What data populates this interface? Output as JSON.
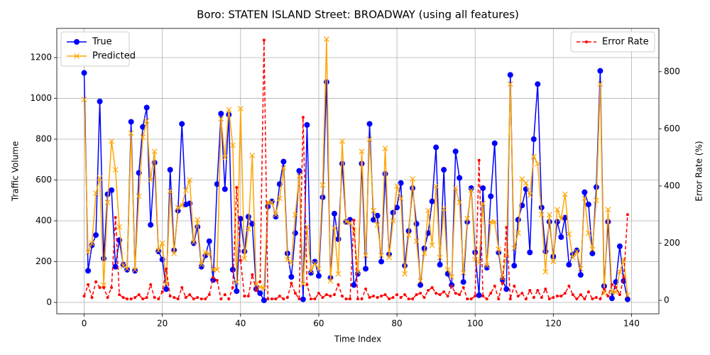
{
  "chart_data": {
    "type": "line",
    "title": "Boro: STATEN ISLAND Street: BROADWAY (using all features)",
    "x_label": "Time Index",
    "y_label": "Traffic Volume",
    "y2_label": "Error Rate (%)",
    "x": [
      0,
      1,
      2,
      3,
      4,
      5,
      6,
      7,
      8,
      9,
      10,
      11,
      12,
      13,
      14,
      15,
      16,
      17,
      18,
      19,
      20,
      21,
      22,
      23,
      24,
      25,
      26,
      27,
      28,
      29,
      30,
      31,
      32,
      33,
      34,
      35,
      36,
      37,
      38,
      39,
      40,
      41,
      42,
      43,
      44,
      45,
      46,
      47,
      48,
      49,
      50,
      51,
      52,
      53,
      54,
      55,
      56,
      57,
      58,
      59,
      60,
      61,
      62,
      63,
      64,
      65,
      66,
      67,
      68,
      69,
      70,
      71,
      72,
      73,
      74,
      75,
      76,
      77,
      78,
      79,
      80,
      81,
      82,
      83,
      84,
      85,
      86,
      87,
      88,
      89,
      90,
      91,
      92,
      93,
      94,
      95,
      96,
      97,
      98,
      99,
      100,
      101,
      102,
      103,
      104,
      105,
      106,
      107,
      108,
      109,
      110,
      111,
      112,
      113,
      114,
      115,
      116,
      117,
      118,
      119,
      120,
      121,
      122,
      123,
      124,
      125,
      126,
      127,
      128,
      129,
      130,
      131,
      132,
      133,
      134,
      135,
      136,
      137,
      138,
      139
    ],
    "series": [
      {
        "name": "True",
        "color": "#0000ff",
        "marker": "o",
        "axis": "y",
        "values": [
          1125,
          155,
          280,
          330,
          985,
          215,
          530,
          550,
          175,
          305,
          185,
          160,
          885,
          155,
          635,
          860,
          955,
          380,
          685,
          250,
          210,
          65,
          650,
          255,
          450,
          875,
          480,
          485,
          290,
          370,
          175,
          230,
          300,
          110,
          580,
          925,
          555,
          920,
          160,
          55,
          410,
          250,
          420,
          385,
          65,
          45,
          10,
          470,
          495,
          420,
          580,
          690,
          240,
          125,
          340,
          645,
          15,
          870,
          145,
          200,
          130,
          515,
          1080,
          120,
          435,
          310,
          680,
          395,
          405,
          85,
          140,
          680,
          165,
          875,
          405,
          425,
          200,
          630,
          235,
          440,
          465,
          585,
          180,
          350,
          560,
          385,
          85,
          265,
          340,
          495,
          760,
          185,
          650,
          140,
          85,
          740,
          610,
          100,
          395,
          560,
          245,
          35,
          560,
          170,
          520,
          780,
          245,
          110,
          65,
          1115,
          180,
          405,
          475,
          555,
          245,
          800,
          1070,
          465,
          250,
          395,
          225,
          395,
          320,
          415,
          185,
          235,
          255,
          135,
          540,
          480,
          240,
          565,
          1135,
          80,
          395,
          20,
          100,
          275,
          105,
          15
        ]
      },
      {
        "name": "Predicted",
        "color": "#ffa500",
        "marker": "x",
        "axis": "y",
        "values": [
          995,
          245,
          290,
          535,
          610,
          85,
          490,
          790,
          650,
          370,
          180,
          165,
          830,
          160,
          520,
          810,
          890,
          600,
          740,
          255,
          290,
          90,
          545,
          240,
          465,
          475,
          550,
          600,
          295,
          405,
          185,
          245,
          240,
          160,
          160,
          900,
          710,
          945,
          770,
          100,
          950,
          215,
          360,
          720,
          90,
          75,
          70,
          490,
          490,
          430,
          510,
          660,
          210,
          195,
          430,
          620,
          90,
          370,
          155,
          190,
          165,
          575,
          1290,
          105,
          365,
          140,
          790,
          395,
          390,
          355,
          150,
          740,
          230,
          800,
          450,
          380,
          230,
          755,
          220,
          400,
          570,
          510,
          140,
          330,
          605,
          300,
          105,
          240,
          450,
          280,
          570,
          220,
          460,
          160,
          125,
          560,
          490,
          145,
          410,
          550,
          210,
          195,
          485,
          180,
          395,
          395,
          260,
          120,
          230,
          1070,
          265,
          340,
          605,
          585,
          525,
          715,
          680,
          430,
          150,
          430,
          200,
          455,
          410,
          530,
          335,
          220,
          250,
          165,
          510,
          340,
          260,
          500,
          1070,
          45,
          455,
          50,
          50,
          150,
          210,
          35
        ]
      },
      {
        "name": "Error Rate",
        "color": "#ff0000",
        "marker": ".",
        "dash": true,
        "axis": "y2",
        "values": [
          15,
          55,
          10,
          65,
          45,
          45,
          10,
          45,
          290,
          20,
          10,
          5,
          5,
          10,
          20,
          5,
          10,
          55,
          10,
          5,
          30,
          110,
          15,
          10,
          5,
          45,
          10,
          20,
          5,
          10,
          5,
          5,
          20,
          80,
          70,
          5,
          20,
          5,
          45,
          395,
          140,
          15,
          15,
          90,
          35,
          65,
          910,
          5,
          5,
          5,
          15,
          5,
          10,
          60,
          25,
          5,
          640,
          55,
          5,
          5,
          25,
          10,
          20,
          15,
          20,
          55,
          15,
          5,
          5,
          280,
          5,
          5,
          40,
          10,
          15,
          10,
          15,
          20,
          5,
          10,
          20,
          10,
          20,
          5,
          5,
          20,
          25,
          10,
          35,
          45,
          25,
          20,
          30,
          15,
          50,
          25,
          20,
          45,
          5,
          5,
          15,
          490,
          15,
          5,
          25,
          50,
          5,
          60,
          255,
          5,
          50,
          15,
          25,
          5,
          35,
          10,
          35,
          10,
          40,
          5,
          10,
          15,
          15,
          25,
          50,
          20,
          5,
          20,
          5,
          30,
          5,
          10,
          5,
          40,
          15,
          55,
          45,
          20,
          80,
          300
        ]
      }
    ],
    "xlim": [
      -7,
      147
    ],
    "xticks": [
      0,
      20,
      40,
      60,
      80,
      100,
      120,
      140
    ],
    "ylim": [
      -56,
      1343
    ],
    "yticks": [
      0,
      200,
      400,
      600,
      800,
      1000,
      1200
    ],
    "y2lim": [
      -47,
      951
    ],
    "y2ticks": [
      0,
      200,
      400,
      600,
      800
    ],
    "grid": true,
    "legend": "upper left",
    "legend2": "upper right"
  }
}
